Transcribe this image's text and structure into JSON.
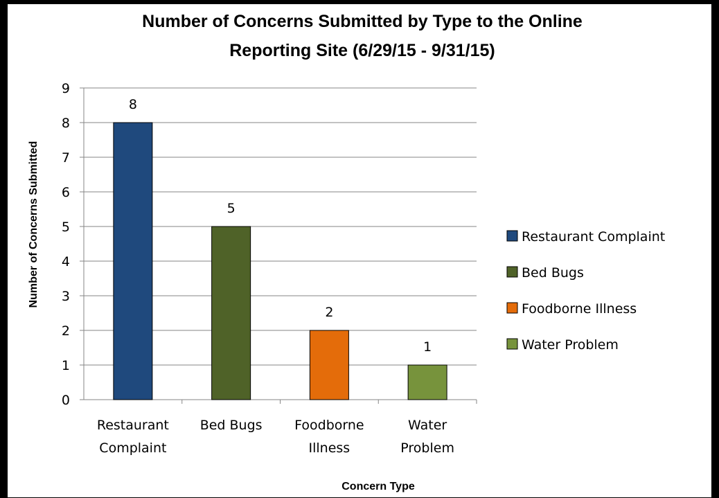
{
  "chart_data": {
    "type": "bar",
    "title_lines": [
      "Number of Concerns Submitted by Type to the Online",
      "Reporting Site (6/29/15 - 9/31/15)"
    ],
    "xlabel": "Concern Type",
    "ylabel": "Number of Concerns Submitted",
    "ylim": [
      0,
      9
    ],
    "y_ticks": [
      "0",
      "1",
      "2",
      "3",
      "4",
      "5",
      "6",
      "7",
      "8",
      "9"
    ],
    "grid": true,
    "legend_position": "right",
    "categories": [
      {
        "id": "restaurant-complaint",
        "label_lines": [
          "Restaurant",
          "Complaint"
        ],
        "legend": "Restaurant Complaint",
        "value": 8,
        "data_label": "8",
        "color": "#1f497d"
      },
      {
        "id": "bed-bugs",
        "label_lines": [
          "Bed Bugs"
        ],
        "legend": "Bed Bugs",
        "value": 5,
        "data_label": "5",
        "color": "#4f6228"
      },
      {
        "id": "foodborne-illness",
        "label_lines": [
          "Foodborne",
          "Illness"
        ],
        "legend": "Foodborne Illness",
        "value": 2,
        "data_label": "2",
        "color": "#e46c0a"
      },
      {
        "id": "water-problem",
        "label_lines": [
          "Water",
          "Problem"
        ],
        "legend": "Water Problem",
        "value": 1,
        "data_label": "1",
        "color": "#77933c"
      }
    ]
  }
}
